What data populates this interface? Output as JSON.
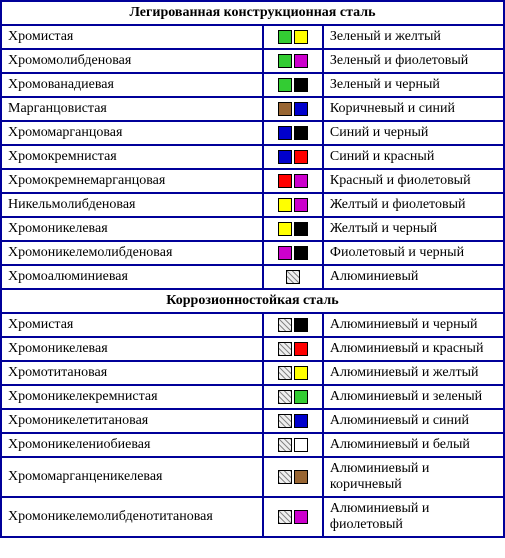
{
  "sections": [
    {
      "title": "Легированная конструкционная сталь",
      "rows": [
        {
          "name": "Хромистая",
          "swatches": [
            {
              "color": "#33cc33"
            },
            {
              "color": "#ffff00"
            }
          ],
          "desc": "Зеленый и желтый"
        },
        {
          "name": "Хромомолибденовая",
          "swatches": [
            {
              "color": "#33cc33"
            },
            {
              "color": "#cc00cc"
            }
          ],
          "desc": "Зеленый и фиолетовый"
        },
        {
          "name": "Хромованадиевая",
          "swatches": [
            {
              "color": "#33cc33"
            },
            {
              "color": "#000000"
            }
          ],
          "desc": "Зеленый и черный"
        },
        {
          "name": "Марганцовистая",
          "swatches": [
            {
              "color": "#996633"
            },
            {
              "color": "#0000cc"
            }
          ],
          "desc": "Коричневый и синий"
        },
        {
          "name": "Хромомарганцовая",
          "swatches": [
            {
              "color": "#0000cc"
            },
            {
              "color": "#000000"
            }
          ],
          "desc": "Синий и черный"
        },
        {
          "name": "Хромокремнистая",
          "swatches": [
            {
              "color": "#0000cc"
            },
            {
              "color": "#ff0000"
            }
          ],
          "desc": "Синий и красный"
        },
        {
          "name": "Хромокремнемарганцовая",
          "swatches": [
            {
              "color": "#ff0000"
            },
            {
              "color": "#cc00cc"
            }
          ],
          "desc": "Красный и фиолетовый"
        },
        {
          "name": "Никельмолибденовая",
          "swatches": [
            {
              "color": "#ffff00"
            },
            {
              "color": "#cc00cc"
            }
          ],
          "desc": "Желтый и фиолетовый"
        },
        {
          "name": "Хромоникелевая",
          "swatches": [
            {
              "color": "#ffff00"
            },
            {
              "color": "#000000"
            }
          ],
          "desc": "Желтый и черный"
        },
        {
          "name": "Хромоникелемолибденовая",
          "swatches": [
            {
              "color": "#cc00cc"
            },
            {
              "color": "#000000"
            }
          ],
          "desc": "Фиолетовый и черный"
        },
        {
          "name": "Хромоалюминиевая",
          "swatches": [
            {
              "hatched": true
            }
          ],
          "desc": "Алюминиевый"
        }
      ]
    },
    {
      "title": "Коррозионностойкая сталь",
      "rows": [
        {
          "name": "Хромистая",
          "swatches": [
            {
              "hatched": true
            },
            {
              "color": "#000000"
            }
          ],
          "desc": "Алюминиевый и черный"
        },
        {
          "name": "Хромоникелевая",
          "swatches": [
            {
              "hatched": true
            },
            {
              "color": "#ff0000"
            }
          ],
          "desc": "Алюминиевый и красный"
        },
        {
          "name": "Хромотитановая",
          "swatches": [
            {
              "hatched": true
            },
            {
              "color": "#ffff00"
            }
          ],
          "desc": "Алюминиевый и желтый"
        },
        {
          "name": "Хромоникелекремнистая",
          "swatches": [
            {
              "hatched": true
            },
            {
              "color": "#33cc33"
            }
          ],
          "desc": "Алюминиевый и зеленый"
        },
        {
          "name": "Хромоникелетитановая",
          "swatches": [
            {
              "hatched": true
            },
            {
              "color": "#0000cc"
            }
          ],
          "desc": "Алюминиевый и синий"
        },
        {
          "name": "Хромоникелениобиевая",
          "swatches": [
            {
              "hatched": true
            },
            {
              "color": "#ffffff"
            }
          ],
          "desc": "Алюминиевый и белый"
        },
        {
          "name": "Хромомарганценикелевая",
          "swatches": [
            {
              "hatched": true
            },
            {
              "color": "#996633"
            }
          ],
          "desc": "Алюминиевый и коричневый"
        },
        {
          "name": "Хромоникелемолибденотитановая",
          "swatches": [
            {
              "hatched": true
            },
            {
              "color": "#cc00cc"
            }
          ],
          "desc": "Алюминиевый и фиолетовый"
        }
      ]
    }
  ]
}
